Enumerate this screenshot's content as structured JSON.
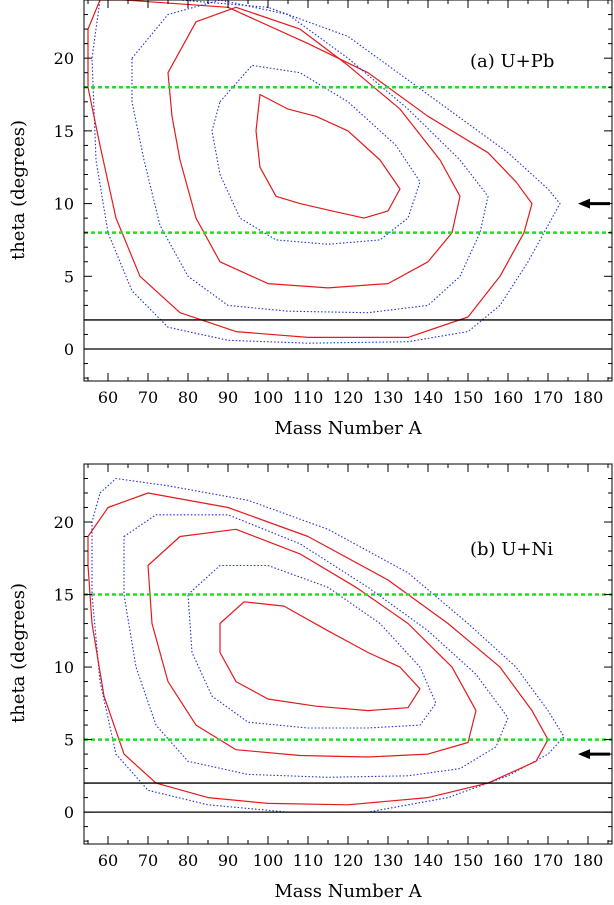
{
  "chart_data": [
    {
      "type": "contour",
      "panel_label": "(a) U+Pb",
      "xlabel": "Mass Number A",
      "ylabel": "theta (degrees)",
      "xlim": [
        54,
        186
      ],
      "ylim": [
        -2.2,
        24
      ],
      "xticks": [
        60,
        70,
        80,
        90,
        100,
        110,
        120,
        130,
        140,
        150,
        160,
        170,
        180
      ],
      "yticks": [
        0,
        5,
        10,
        15,
        20
      ],
      "green_dashed_lines_y": [
        18,
        8
      ],
      "black_lines_y": [
        2,
        0
      ],
      "arrow_y": 10,
      "contour_levels": [
        {
          "style": "dotted-blue",
          "points": [
            [
              62,
              24
            ],
            [
              78,
              24
            ],
            [
              100,
              23.5
            ],
            [
              120,
              21.5
            ],
            [
              140,
              17.5
            ],
            [
              160,
              13.5
            ],
            [
              170,
              11
            ],
            [
              173,
              10
            ],
            [
              170,
              8.5
            ],
            [
              165,
              6
            ],
            [
              158,
              3
            ],
            [
              150,
              1.2
            ],
            [
              135,
              0.5
            ],
            [
              110,
              0.4
            ],
            [
              90,
              0.6
            ],
            [
              75,
              1.5
            ],
            [
              66,
              4
            ],
            [
              60,
              8
            ],
            [
              57,
              13
            ],
            [
              56,
              20
            ],
            [
              58,
              24
            ]
          ]
        },
        {
          "style": "solid-red",
          "points": [
            [
              55,
              22
            ],
            [
              58,
              24
            ],
            [
              64,
              24
            ],
            [
              90,
              23.5
            ],
            [
              110,
              21
            ],
            [
              125,
              19
            ],
            [
              140,
              16
            ],
            [
              155,
              13.5
            ],
            [
              162,
              11.5
            ],
            [
              166,
              10
            ],
            [
              164,
              8
            ],
            [
              158,
              5
            ],
            [
              150,
              2.2
            ],
            [
              135,
              0.8
            ],
            [
              110,
              0.8
            ],
            [
              92,
              1.2
            ],
            [
              78,
              2.5
            ],
            [
              68,
              5
            ],
            [
              62,
              9
            ],
            [
              58,
              14
            ],
            [
              55,
              18
            ]
          ]
        },
        {
          "style": "dotted-blue",
          "points": [
            [
              66,
              20
            ],
            [
              75,
              23
            ],
            [
              88,
              24
            ],
            [
              105,
              23
            ],
            [
              120,
              20
            ],
            [
              135,
              16.5
            ],
            [
              148,
              13
            ],
            [
              155,
              10.5
            ],
            [
              153,
              8
            ],
            [
              148,
              5
            ],
            [
              140,
              3
            ],
            [
              125,
              2.5
            ],
            [
              105,
              2.6
            ],
            [
              90,
              3
            ],
            [
              80,
              5
            ],
            [
              73,
              8.5
            ],
            [
              69,
              13
            ],
            [
              66,
              17
            ]
          ]
        },
        {
          "style": "solid-red",
          "points": [
            [
              75,
              19
            ],
            [
              82,
              22.5
            ],
            [
              92,
              23.5
            ],
            [
              108,
              22
            ],
            [
              120,
              19.5
            ],
            [
              133,
              16.5
            ],
            [
              143,
              13
            ],
            [
              148,
              10.5
            ],
            [
              146,
              8
            ],
            [
              140,
              6
            ],
            [
              130,
              4.5
            ],
            [
              115,
              4.2
            ],
            [
              100,
              4.5
            ],
            [
              88,
              6
            ],
            [
              82,
              9
            ],
            [
              78,
              13
            ],
            [
              76,
              16
            ]
          ]
        },
        {
          "style": "dotted-blue",
          "points": [
            [
              88,
              17
            ],
            [
              96,
              19.5
            ],
            [
              108,
              19
            ],
            [
              120,
              17
            ],
            [
              132,
              14
            ],
            [
              138,
              11.5
            ],
            [
              135,
              9
            ],
            [
              128,
              7.5
            ],
            [
              115,
              7.2
            ],
            [
              102,
              7.5
            ],
            [
              93,
              9
            ],
            [
              88,
              12
            ],
            [
              86,
              15
            ]
          ]
        },
        {
          "style": "solid-red",
          "points": [
            [
              98,
              17.5
            ],
            [
              105,
              16.5
            ],
            [
              112,
              16
            ],
            [
              120,
              15
            ],
            [
              128,
              13
            ],
            [
              133,
              11
            ],
            [
              130,
              9.5
            ],
            [
              124,
              9
            ],
            [
              116,
              9.5
            ],
            [
              108,
              10
            ],
            [
              102,
              10.5
            ],
            [
              98,
              12.5
            ],
            [
              97,
              15
            ]
          ]
        }
      ]
    },
    {
      "type": "contour",
      "panel_label": "(b) U+Ni",
      "xlabel": "Mass Number A",
      "ylabel": "theta (degrees)",
      "xlim": [
        54,
        186
      ],
      "ylim": [
        -2.2,
        24
      ],
      "xticks": [
        60,
        70,
        80,
        90,
        100,
        110,
        120,
        130,
        140,
        150,
        160,
        170,
        180
      ],
      "yticks": [
        0,
        5,
        10,
        15,
        20
      ],
      "green_dashed_lines_y": [
        15,
        5
      ],
      "black_lines_y": [
        2,
        0
      ],
      "arrow_y": 4,
      "contour_levels": [
        {
          "style": "dotted-blue",
          "points": [
            [
              58,
              22
            ],
            [
              62,
              23
            ],
            [
              75,
              22.5
            ],
            [
              95,
              21.5
            ],
            [
              115,
              19.5
            ],
            [
              135,
              16.5
            ],
            [
              150,
              13
            ],
            [
              162,
              10
            ],
            [
              170,
              7
            ],
            [
              174,
              5.2
            ],
            [
              170,
              4
            ],
            [
              160,
              2.5
            ],
            [
              145,
              1
            ],
            [
              125,
              0
            ],
            [
              105,
              0
            ],
            [
              85,
              0.5
            ],
            [
              70,
              1.5
            ],
            [
              62,
              4
            ],
            [
              58,
              9
            ],
            [
              56,
              15
            ],
            [
              56,
              20
            ]
          ]
        },
        {
          "style": "solid-red",
          "points": [
            [
              55,
              19
            ],
            [
              60,
              21
            ],
            [
              70,
              22
            ],
            [
              90,
              21
            ],
            [
              110,
              19
            ],
            [
              130,
              16
            ],
            [
              145,
              13
            ],
            [
              158,
              10
            ],
            [
              166,
              7
            ],
            [
              170,
              5
            ],
            [
              167,
              3.5
            ],
            [
              155,
              2
            ],
            [
              140,
              1
            ],
            [
              120,
              0.5
            ],
            [
              100,
              0.6
            ],
            [
              85,
              1
            ],
            [
              72,
              2
            ],
            [
              64,
              4
            ],
            [
              59,
              8
            ],
            [
              56,
              13
            ],
            [
              55,
              17
            ]
          ]
        },
        {
          "style": "dotted-blue",
          "points": [
            [
              64,
              19
            ],
            [
              72,
              20.5
            ],
            [
              90,
              20.5
            ],
            [
              108,
              18.5
            ],
            [
              125,
              15.5
            ],
            [
              140,
              12.5
            ],
            [
              152,
              9.5
            ],
            [
              160,
              6.5
            ],
            [
              157,
              4.5
            ],
            [
              148,
              3
            ],
            [
              135,
              2.5
            ],
            [
              115,
              2.4
            ],
            [
              95,
              2.6
            ],
            [
              80,
              3.5
            ],
            [
              72,
              6
            ],
            [
              67,
              10
            ],
            [
              64,
              15
            ]
          ]
        },
        {
          "style": "solid-red",
          "points": [
            [
              70,
              17
            ],
            [
              78,
              19
            ],
            [
              92,
              19.5
            ],
            [
              108,
              17.8
            ],
            [
              122,
              15.5
            ],
            [
              135,
              13
            ],
            [
              146,
              10
            ],
            [
              152,
              7
            ],
            [
              150,
              4.8
            ],
            [
              140,
              4
            ],
            [
              125,
              3.8
            ],
            [
              108,
              3.9
            ],
            [
              92,
              4.3
            ],
            [
              82,
              6
            ],
            [
              75,
              9
            ],
            [
              71,
              13
            ]
          ]
        },
        {
          "style": "dotted-blue",
          "points": [
            [
              80,
              15
            ],
            [
              88,
              17
            ],
            [
              100,
              17
            ],
            [
              115,
              15.5
            ],
            [
              128,
              13
            ],
            [
              138,
              10
            ],
            [
              142,
              7.5
            ],
            [
              138,
              6
            ],
            [
              125,
              5.8
            ],
            [
              110,
              5.8
            ],
            [
              95,
              6.2
            ],
            [
              86,
              8
            ],
            [
              81,
              11
            ]
          ]
        },
        {
          "style": "solid-red",
          "points": [
            [
              88,
              13
            ],
            [
              94,
              14.5
            ],
            [
              104,
              14.2
            ],
            [
              115,
              12.5
            ],
            [
              125,
              11
            ],
            [
              133,
              10
            ],
            [
              138,
              8.5
            ],
            [
              135,
              7.2
            ],
            [
              125,
              7
            ],
            [
              112,
              7.3
            ],
            [
              100,
              7.8
            ],
            [
              92,
              9
            ],
            [
              88,
              11
            ]
          ]
        }
      ]
    }
  ]
}
